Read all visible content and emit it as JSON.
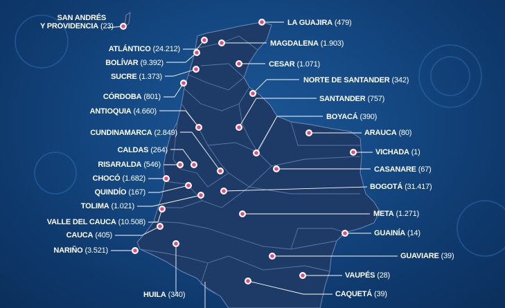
{
  "colors": {
    "background": "#154a85",
    "map_fill": "#1e3a66",
    "border": "#5c7aa6",
    "dot": "#e0488c",
    "text": "#ffffff"
  },
  "regions": [
    {
      "id": "san-andres",
      "name": "SAN ANDRÉS",
      "name2": "Y PROVIDENCIA",
      "count": "(23)"
    },
    {
      "id": "la-guajira",
      "name": "LA GUAJIRA",
      "count": "(479)"
    },
    {
      "id": "atlantico",
      "name": "ATLÁNTICO",
      "count": "(24.212)"
    },
    {
      "id": "magdalena",
      "name": "MAGDALENA",
      "count": "(1.903)"
    },
    {
      "id": "bolivar",
      "name": "BOLÍVAR",
      "count": "(9.392)"
    },
    {
      "id": "cesar",
      "name": "CESAR",
      "count": "(1.071)"
    },
    {
      "id": "sucre",
      "name": "SUCRE",
      "count": "(1.373)"
    },
    {
      "id": "norte-de-santander",
      "name": "NORTE DE SANTANDER",
      "count": "(342)"
    },
    {
      "id": "cordoba",
      "name": "CÓRDOBA",
      "count": "(801)"
    },
    {
      "id": "santander",
      "name": "SANTANDER",
      "count": "(757)"
    },
    {
      "id": "antioquia",
      "name": "ANTIOQUIA",
      "count": "(4.660)"
    },
    {
      "id": "boyaca",
      "name": "BOYACÁ",
      "count": "(390)"
    },
    {
      "id": "cundinamarca",
      "name": "CUNDINAMARCA",
      "count": "(2.849)"
    },
    {
      "id": "arauca",
      "name": "ARAUCA",
      "count": "(80)"
    },
    {
      "id": "caldas",
      "name": "CALDAS",
      "count": "(264)"
    },
    {
      "id": "vichada",
      "name": "VICHADA",
      "count": "(1)"
    },
    {
      "id": "risaralda",
      "name": "RISARALDA",
      "count": "(546)"
    },
    {
      "id": "casanare",
      "name": "CASANARE",
      "count": "(67)"
    },
    {
      "id": "choco",
      "name": "CHOCÓ",
      "count": "(1.682)"
    },
    {
      "id": "bogota",
      "name": "BOGOTÁ",
      "count": "(31.417)"
    },
    {
      "id": "quindio",
      "name": "QUINDÍO",
      "count": "(167)"
    },
    {
      "id": "tolima",
      "name": "TOLIMA",
      "count": "(1.021)"
    },
    {
      "id": "meta",
      "name": "META",
      "count": "(1.271)"
    },
    {
      "id": "valle-del-cauca",
      "name": "VALLE DEL CAUCA",
      "count": "(10.508)"
    },
    {
      "id": "guainia",
      "name": "GUAINÍA",
      "count": "(14)"
    },
    {
      "id": "cauca",
      "name": "CAUCA",
      "count": "(405)"
    },
    {
      "id": "narino",
      "name": "NARIÑO",
      "count": "(3.521)"
    },
    {
      "id": "guaviare",
      "name": "GUAVIARE",
      "count": "(39)"
    },
    {
      "id": "vaupes",
      "name": "VAUPÉS",
      "count": "(28)"
    },
    {
      "id": "huila",
      "name": "HUILA",
      "count": "(340)"
    },
    {
      "id": "caqueta",
      "name": "CAQUETÁ",
      "count": "(39)"
    }
  ]
}
